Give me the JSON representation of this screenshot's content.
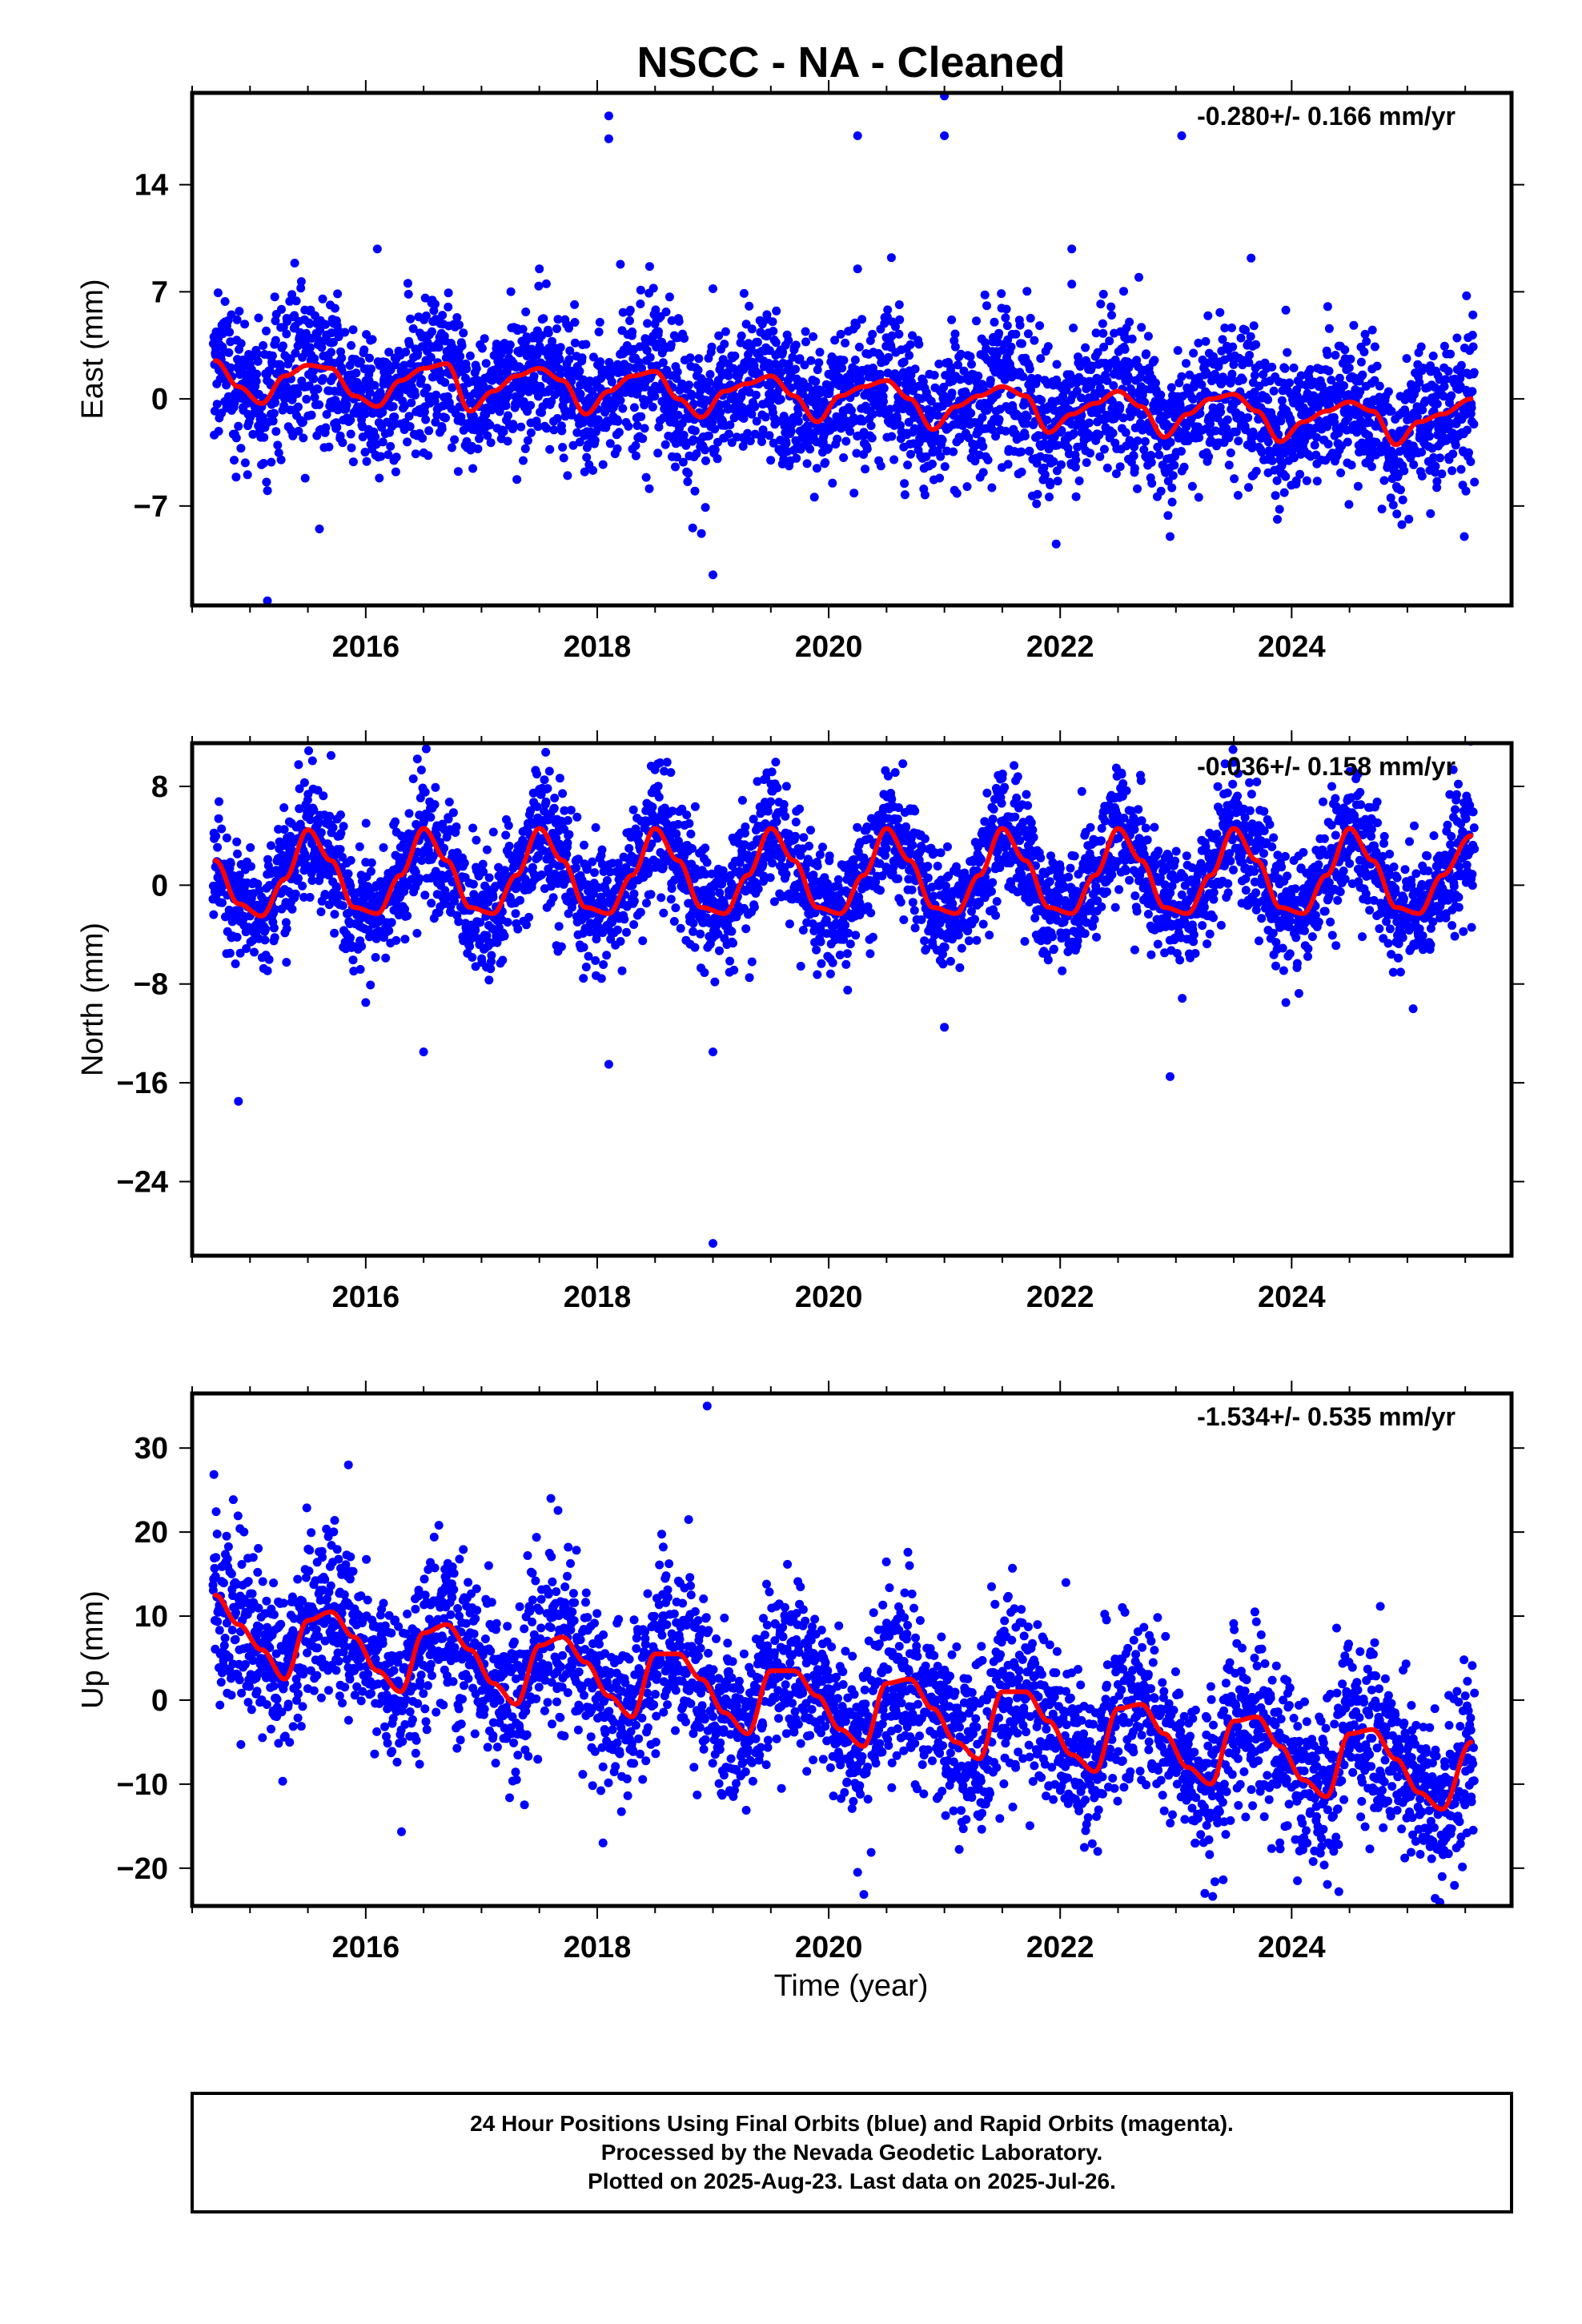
{
  "title": "NSCC  - NA - Cleaned",
  "xlabel": "Time (year)",
  "colors": {
    "points": "#0000ff",
    "fit": "#ff0000",
    "frame": "#000000"
  },
  "caption": [
    "24 Hour Positions Using Final Orbits (blue) and Rapid Orbits (magenta).",
    "Processed by the Nevada Geodetic Laboratory.",
    "Plotted on 2025-Aug-23. Last data on 2025-Jul-26."
  ],
  "chart_data": [
    {
      "type": "scatter",
      "component": "East",
      "ylabel": "East (mm)",
      "rate_label": "-0.280+/- 0.166 mm/yr",
      "xlim": [
        2014.5,
        2025.9
      ],
      "ylim": [
        -13.5,
        20
      ],
      "xticks": [
        2016,
        2018,
        2020,
        2022,
        2024
      ],
      "yticks": [
        -7,
        0,
        7,
        14
      ],
      "fit": {
        "x": [
          2014.7,
          2014.9,
          2015.1,
          2015.3,
          2015.5,
          2015.7,
          2015.9,
          2016.1,
          2016.3,
          2016.5,
          2016.7,
          2016.9,
          2017.1,
          2017.3,
          2017.5,
          2017.7,
          2017.9,
          2018.1,
          2018.3,
          2018.5,
          2018.7,
          2018.9,
          2019.1,
          2019.3,
          2019.5,
          2019.7,
          2019.9,
          2020.1,
          2020.3,
          2020.5,
          2020.7,
          2020.9,
          2021.1,
          2021.3,
          2021.5,
          2021.7,
          2021.9,
          2022.1,
          2022.3,
          2022.5,
          2022.7,
          2022.9,
          2023.1,
          2023.3,
          2023.5,
          2023.7,
          2023.9,
          2024.1,
          2024.3,
          2024.5,
          2024.7,
          2024.9,
          2025.1,
          2025.3,
          2025.55
        ],
        "y": [
          2.5,
          0.8,
          -0.3,
          1.5,
          2.2,
          2.0,
          0.2,
          -0.5,
          1.2,
          2.0,
          2.3,
          -0.8,
          0.5,
          1.5,
          2.0,
          1.2,
          -1.0,
          0.5,
          1.5,
          1.8,
          0.0,
          -1.2,
          0.5,
          1.0,
          1.5,
          0.2,
          -1.5,
          0.2,
          0.8,
          1.2,
          0.0,
          -2.0,
          -0.5,
          0.2,
          0.8,
          0.2,
          -2.2,
          -1.0,
          -0.3,
          0.5,
          -0.5,
          -2.5,
          -1.0,
          0.0,
          0.3,
          -0.8,
          -2.8,
          -1.5,
          -0.8,
          -0.2,
          -0.8,
          -3.0,
          -1.5,
          -1.0,
          0.0
        ]
      },
      "outliers": [
        [
          2015.15,
          -13.2
        ],
        [
          2015.6,
          -8.5
        ],
        [
          2016.1,
          9.8
        ],
        [
          2017.5,
          8.5
        ],
        [
          2018.1,
          18.5
        ],
        [
          2018.1,
          17
        ],
        [
          2018.2,
          8.8
        ],
        [
          2018.9,
          -8.8
        ],
        [
          2019.0,
          -11.5
        ],
        [
          2019.0,
          7.2
        ],
        [
          2020.25,
          17.2
        ],
        [
          2020.25,
          8.5
        ],
        [
          2021.0,
          19.8
        ],
        [
          2021.0,
          17.2
        ],
        [
          2021.35,
          6.8
        ],
        [
          2022.1,
          9.8
        ],
        [
          2022.1,
          7.5
        ],
        [
          2022.35,
          6.2
        ],
        [
          2022.95,
          -9.0
        ],
        [
          2023.05,
          17.2
        ],
        [
          2023.65,
          9.2
        ],
        [
          2023.95,
          5.8
        ],
        [
          2025.2,
          -7.5
        ]
      ],
      "spread": {
        "base": 2.0,
        "summer_extra": 0.6
      }
    },
    {
      "type": "scatter",
      "component": "North",
      "ylabel": "North (mm)",
      "rate_label": "-0.036+/- 0.158 mm/yr",
      "xlim": [
        2014.5,
        2025.9
      ],
      "ylim": [
        -30,
        11.5
      ],
      "xticks": [
        2016,
        2018,
        2020,
        2022,
        2024
      ],
      "yticks": [
        -24,
        -16,
        -8,
        0,
        8
      ],
      "fit": {
        "x": [
          2014.7,
          2014.9,
          2015.1,
          2015.3,
          2015.5,
          2015.7,
          2015.9,
          2016.1,
          2016.3,
          2016.5,
          2016.7,
          2016.9,
          2017.1,
          2017.3,
          2017.5,
          2017.7,
          2017.9,
          2018.1,
          2018.3,
          2018.5,
          2018.7,
          2018.9,
          2019.1,
          2019.3,
          2019.5,
          2019.7,
          2019.9,
          2020.1,
          2020.3,
          2020.5,
          2020.7,
          2020.9,
          2021.1,
          2021.3,
          2021.5,
          2021.7,
          2021.9,
          2022.1,
          2022.3,
          2022.5,
          2022.7,
          2022.9,
          2023.1,
          2023.3,
          2023.5,
          2023.7,
          2023.9,
          2024.1,
          2024.3,
          2024.5,
          2024.7,
          2024.9,
          2025.1,
          2025.3,
          2025.55
        ],
        "y": [
          2.0,
          -1.5,
          -2.5,
          0.5,
          4.5,
          2.0,
          -1.8,
          -2.3,
          0.8,
          4.6,
          2.0,
          -1.8,
          -2.3,
          0.8,
          4.6,
          2.0,
          -1.8,
          -2.3,
          0.8,
          4.6,
          2.0,
          -1.8,
          -2.3,
          0.8,
          4.6,
          2.0,
          -1.8,
          -2.3,
          0.8,
          4.6,
          2.0,
          -1.8,
          -2.3,
          0.8,
          4.6,
          2.0,
          -1.8,
          -2.3,
          0.8,
          4.6,
          2.0,
          -1.8,
          -2.3,
          0.8,
          4.6,
          2.0,
          -1.8,
          -2.3,
          0.8,
          4.6,
          2.0,
          -1.8,
          -2.3,
          0.8,
          4.0
        ]
      },
      "outliers": [
        [
          2014.9,
          -17.5
        ],
        [
          2015.7,
          10.5
        ],
        [
          2016.0,
          -9.5
        ],
        [
          2016.5,
          -13.5
        ],
        [
          2018.1,
          -14.5
        ],
        [
          2019.0,
          -13.5
        ],
        [
          2019.0,
          -29.0
        ],
        [
          2021.0,
          -11.5
        ],
        [
          2022.95,
          -15.5
        ],
        [
          2023.95,
          -9.5
        ],
        [
          2025.05,
          -10.0
        ]
      ],
      "spread": {
        "base": 2.2,
        "summer_extra": 0.5
      }
    },
    {
      "type": "scatter",
      "component": "Up",
      "ylabel": "Up (mm)",
      "rate_label": "-1.534+/- 0.535 mm/yr",
      "xlim": [
        2014.5,
        2025.9
      ],
      "ylim": [
        -24.5,
        36.5
      ],
      "xticks": [
        2016,
        2018,
        2020,
        2022,
        2024
      ],
      "yticks": [
        -20,
        -10,
        0,
        10,
        20,
        30
      ],
      "fit": {
        "x": [
          2014.7,
          2014.9,
          2015.1,
          2015.3,
          2015.5,
          2015.7,
          2015.9,
          2016.1,
          2016.3,
          2016.5,
          2016.7,
          2016.9,
          2017.1,
          2017.3,
          2017.5,
          2017.7,
          2017.9,
          2018.1,
          2018.3,
          2018.5,
          2018.7,
          2018.9,
          2019.1,
          2019.3,
          2019.5,
          2019.7,
          2019.9,
          2020.1,
          2020.3,
          2020.5,
          2020.7,
          2020.9,
          2021.1,
          2021.3,
          2021.5,
          2021.7,
          2021.9,
          2022.1,
          2022.3,
          2022.5,
          2022.7,
          2022.9,
          2023.1,
          2023.3,
          2023.5,
          2023.7,
          2023.9,
          2024.1,
          2024.3,
          2024.5,
          2024.7,
          2024.9,
          2025.1,
          2025.3,
          2025.55
        ],
        "y": [
          12.5,
          9.0,
          6.0,
          2.5,
          9.5,
          10.5,
          7.5,
          3.5,
          1.0,
          8.0,
          9.0,
          6.0,
          2.0,
          -0.5,
          6.5,
          7.5,
          4.5,
          0.5,
          -2.0,
          5.5,
          5.5,
          2.5,
          -1.5,
          -4.0,
          3.5,
          3.5,
          0.5,
          -3.5,
          -5.5,
          2.0,
          2.5,
          -1.0,
          -5.0,
          -7.0,
          1.0,
          1.0,
          -2.5,
          -6.5,
          -8.5,
          -1.0,
          -0.5,
          -4.0,
          -8.0,
          -10.0,
          -2.5,
          -2.0,
          -5.5,
          -9.5,
          -11.5,
          -4.0,
          -3.5,
          -7.0,
          -11.0,
          -13.0,
          -5.0
        ]
      },
      "outliers": [
        [
          2015.85,
          28.0
        ],
        [
          2017.6,
          24.0
        ],
        [
          2018.05,
          -17.0
        ],
        [
          2018.95,
          35.0
        ],
        [
          2020.25,
          -20.5
        ],
        [
          2022.05,
          14.0
        ],
        [
          2023.25,
          -23.0
        ],
        [
          2024.05,
          -21.5
        ],
        [
          2025.3,
          -21.0
        ]
      ],
      "spread": {
        "base": 4.5,
        "summer_extra": 1.2
      }
    }
  ]
}
